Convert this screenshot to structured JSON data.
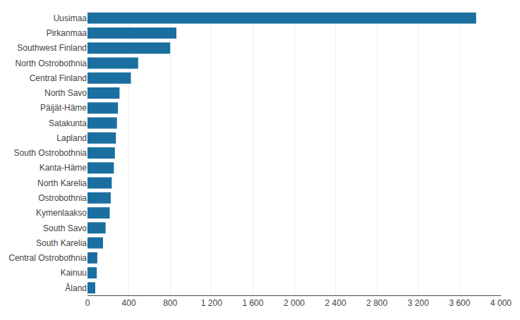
{
  "chart_data": {
    "type": "bar",
    "orientation": "horizontal",
    "categories": [
      "Uusimaa",
      "Pirkanmaa",
      "Southwest Finland",
      "North Ostrobothnia",
      "Central Finland",
      "North Savo",
      "Päijät-Häme",
      "Satakunta",
      "Lapland",
      "South Ostrobothnia",
      "Kanta-Häme",
      "North Karelia",
      "Ostrobothnia",
      "Kymenlaakso",
      "South Savo",
      "South Karelia",
      "Central Ostrobothnia",
      "Kainuu",
      "Åland"
    ],
    "values": [
      3760,
      860,
      800,
      490,
      420,
      310,
      295,
      285,
      275,
      265,
      255,
      235,
      225,
      215,
      175,
      150,
      95,
      90,
      75
    ],
    "color": "#1a6fa0",
    "xlim": [
      0,
      4000
    ],
    "xticks": [
      0,
      400,
      800,
      {
        "value": 1200,
        "label": "1 200"
      },
      {
        "value": 1600,
        "label": "1 600"
      },
      {
        "value": 2000,
        "label": "2 000"
      },
      {
        "value": 2400,
        "label": "2 400"
      },
      {
        "value": 2800,
        "label": "2 800"
      },
      {
        "value": 3200,
        "label": "3 200"
      },
      {
        "value": 3600,
        "label": "3 600"
      },
      {
        "value": 4000,
        "label": "4 000"
      }
    ],
    "grid": true
  }
}
